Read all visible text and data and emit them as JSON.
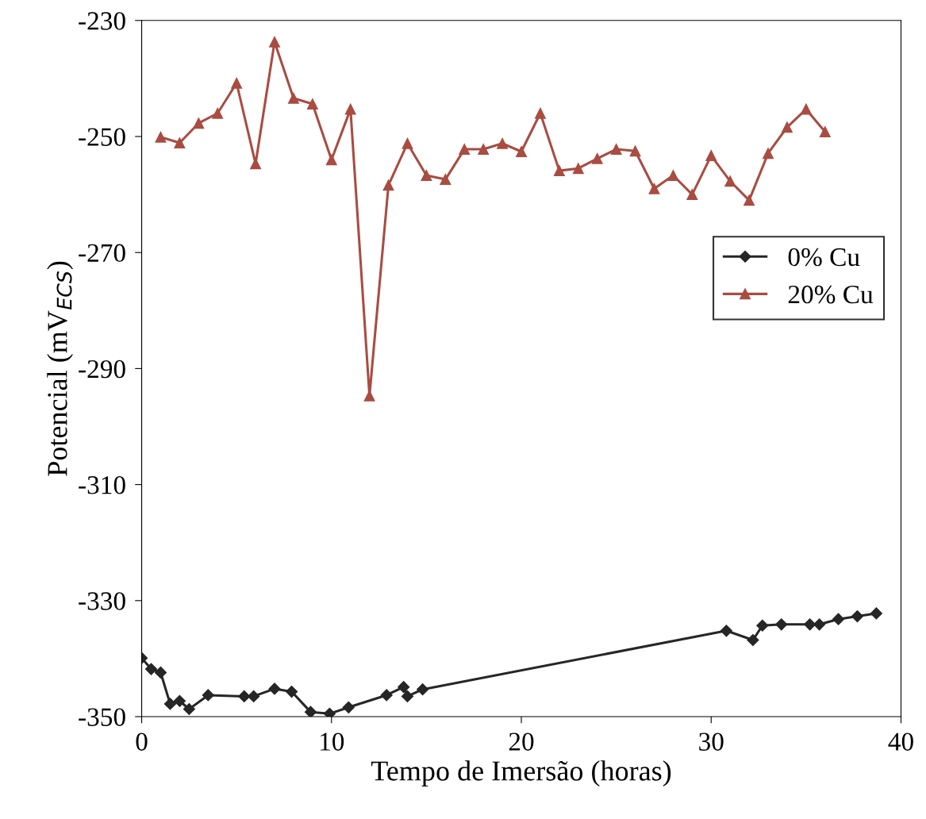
{
  "chart_data": {
    "type": "line",
    "xlabel": "Tempo de Imersão (horas)",
    "ylabel": "Potencial (mV$_{ECS}$)",
    "xlim": [
      0,
      40
    ],
    "xticks": [
      0,
      10,
      20,
      30,
      40
    ],
    "ylim": [
      -350,
      -230
    ],
    "yticks": [
      -230,
      -250,
      -270,
      -290,
      -310,
      -330,
      -350
    ],
    "grid": false,
    "legend": "right",
    "series": [
      {
        "name": "0% Cu",
        "color": "#262626",
        "marker": "diamond",
        "x": [
          0.0,
          0.5,
          1.0,
          1.5,
          2.0,
          2.5,
          3.5,
          5.4,
          5.9,
          7.0,
          7.9,
          8.9,
          9.9,
          10.9,
          12.9,
          13.8,
          14.0,
          14.8,
          30.8,
          32.2,
          32.7,
          33.7,
          35.2,
          35.7,
          36.7,
          37.7,
          38.7
        ],
        "values": [
          -339.9,
          -341.8,
          -342.4,
          -347.8,
          -347.3,
          -348.7,
          -346.3,
          -346.5,
          -346.5,
          -345.2,
          -345.7,
          -349.2,
          -349.5,
          -348.4,
          -346.3,
          -344.9,
          -346.5,
          -345.3,
          -335.2,
          -336.8,
          -334.3,
          -334.1,
          -334.1,
          -334.1,
          -333.2,
          -332.7,
          -332.2
        ]
      },
      {
        "name": "20% Cu",
        "color": "#a94c42",
        "marker": "triangle",
        "x": [
          1,
          2,
          3,
          4,
          5,
          6,
          7,
          8,
          9,
          10,
          11,
          12,
          13,
          14,
          15,
          16,
          17,
          18,
          19,
          20,
          21,
          22,
          23,
          24,
          25,
          26,
          27,
          28,
          29,
          30,
          31,
          32,
          33,
          34,
          35,
          36
        ],
        "values": [
          -250.1,
          -251.1,
          -247.7,
          -246.0,
          -240.8,
          -254.7,
          -233.7,
          -243.4,
          -244.4,
          -254.0,
          -245.3,
          -294.7,
          -258.4,
          -251.2,
          -256.7,
          -257.4,
          -252.2,
          -252.2,
          -251.2,
          -252.6,
          -246.0,
          -255.9,
          -255.5,
          -253.8,
          -252.2,
          -252.5,
          -259.0,
          -256.7,
          -260.0,
          -253.3,
          -257.7,
          -261.0,
          -252.9,
          -248.4,
          -245.3,
          -249.2
        ]
      }
    ]
  }
}
